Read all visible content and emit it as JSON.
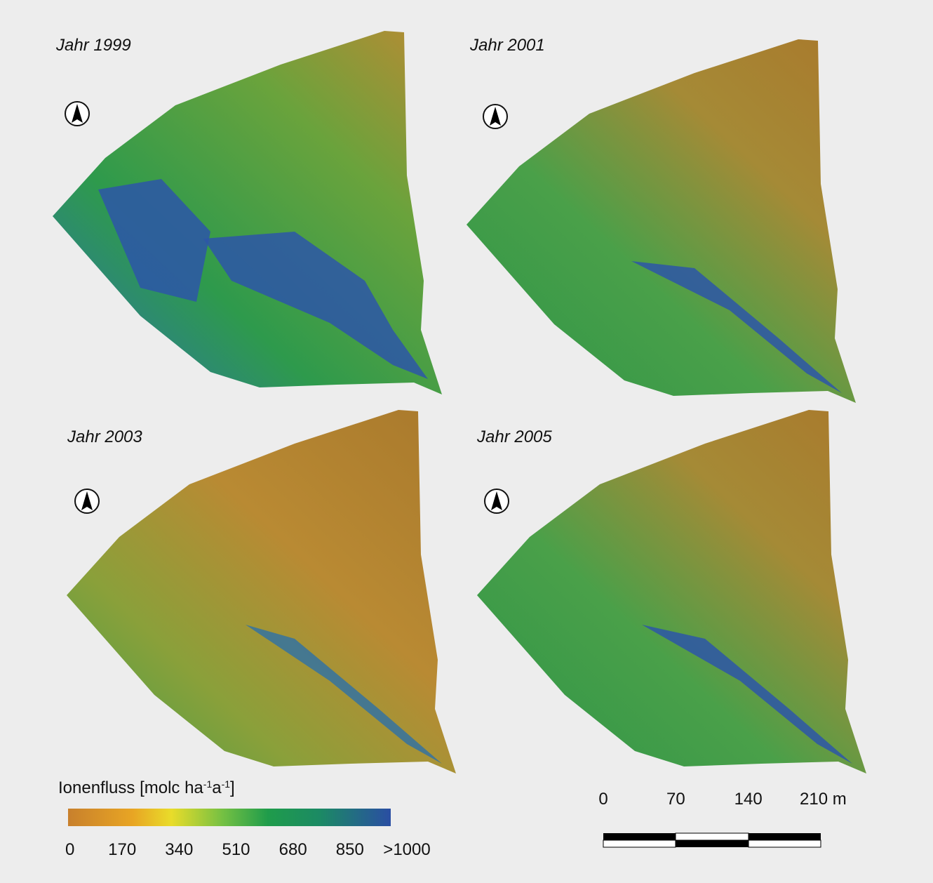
{
  "panels": [
    {
      "title": "Jahr 1999"
    },
    {
      "title": "Jahr 2001"
    },
    {
      "title": "Jahr 2003"
    },
    {
      "title": "Jahr 2005"
    }
  ],
  "legend": {
    "title_parts": [
      "Ionenfluss [molc ha",
      "-1",
      "a",
      "-1",
      "]"
    ],
    "ticks": [
      0,
      170,
      340,
      510,
      680,
      850,
      ">1000"
    ]
  },
  "scale_bar": {
    "ticks": [
      0,
      70,
      140,
      {
        "value": 210,
        "label": "210 m"
      }
    ]
  }
}
